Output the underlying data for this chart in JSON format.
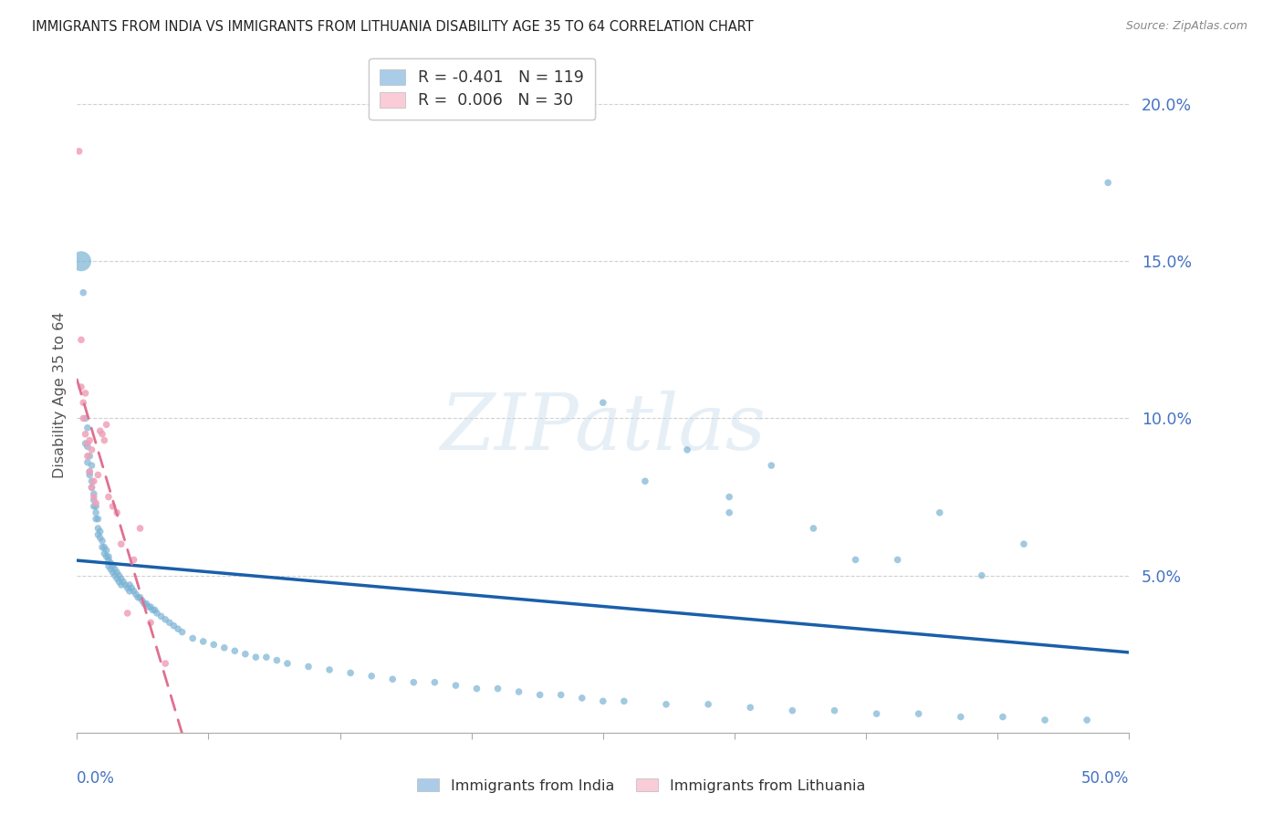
{
  "title": "IMMIGRANTS FROM INDIA VS IMMIGRANTS FROM LITHUANIA DISABILITY AGE 35 TO 64 CORRELATION CHART",
  "source": "Source: ZipAtlas.com",
  "ylabel": "Disability Age 35 to 64",
  "india_color": "#7ab3d4",
  "lithuania_color": "#f0a0b8",
  "india_R": -0.401,
  "india_N": 119,
  "lithuania_R": 0.006,
  "lithuania_N": 30,
  "legend_india_label": "R = -0.401   N = 119",
  "legend_lithuania_label": "R =  0.006   N = 30",
  "watermark": "ZIPatlas",
  "xlim": [
    0.0,
    0.5
  ],
  "ylim": [
    0.0,
    0.215
  ],
  "bg_color": "#ffffff",
  "grid_color": "#cccccc",
  "right_tick_color": "#4472c4",
  "bottom_tick_color": "#4472c4",
  "title_color": "#222222",
  "india_line_color": "#1a5faa",
  "lithuania_line_color": "#e07090",
  "india_legend_color": "#aacce8",
  "lithuania_legend_color": "#f9ccd8",
  "india_scatter_x": [
    0.002,
    0.003,
    0.004,
    0.004,
    0.005,
    0.005,
    0.005,
    0.006,
    0.006,
    0.006,
    0.007,
    0.007,
    0.007,
    0.008,
    0.008,
    0.008,
    0.009,
    0.009,
    0.009,
    0.01,
    0.01,
    0.01,
    0.011,
    0.011,
    0.012,
    0.012,
    0.013,
    0.013,
    0.014,
    0.014,
    0.015,
    0.015,
    0.015,
    0.016,
    0.016,
    0.017,
    0.017,
    0.018,
    0.018,
    0.019,
    0.019,
    0.02,
    0.02,
    0.021,
    0.021,
    0.022,
    0.023,
    0.024,
    0.025,
    0.025,
    0.026,
    0.027,
    0.028,
    0.029,
    0.03,
    0.031,
    0.032,
    0.033,
    0.034,
    0.035,
    0.036,
    0.037,
    0.038,
    0.04,
    0.042,
    0.044,
    0.046,
    0.048,
    0.05,
    0.055,
    0.06,
    0.065,
    0.07,
    0.075,
    0.08,
    0.085,
    0.09,
    0.095,
    0.1,
    0.11,
    0.12,
    0.13,
    0.14,
    0.15,
    0.16,
    0.17,
    0.18,
    0.19,
    0.2,
    0.21,
    0.22,
    0.23,
    0.24,
    0.25,
    0.26,
    0.28,
    0.3,
    0.32,
    0.34,
    0.36,
    0.38,
    0.4,
    0.42,
    0.44,
    0.46,
    0.48,
    0.49,
    0.35,
    0.27,
    0.31,
    0.41,
    0.45,
    0.33,
    0.29,
    0.37,
    0.43,
    0.31,
    0.39,
    0.25
  ],
  "india_scatter_y": [
    0.15,
    0.14,
    0.1,
    0.092,
    0.097,
    0.091,
    0.086,
    0.088,
    0.083,
    0.082,
    0.085,
    0.08,
    0.078,
    0.076,
    0.074,
    0.072,
    0.072,
    0.07,
    0.068,
    0.068,
    0.065,
    0.063,
    0.064,
    0.062,
    0.061,
    0.059,
    0.059,
    0.057,
    0.058,
    0.056,
    0.056,
    0.055,
    0.053,
    0.054,
    0.052,
    0.053,
    0.051,
    0.052,
    0.05,
    0.051,
    0.049,
    0.05,
    0.048,
    0.049,
    0.047,
    0.048,
    0.047,
    0.046,
    0.047,
    0.045,
    0.046,
    0.045,
    0.044,
    0.043,
    0.043,
    0.042,
    0.041,
    0.041,
    0.04,
    0.04,
    0.039,
    0.039,
    0.038,
    0.037,
    0.036,
    0.035,
    0.034,
    0.033,
    0.032,
    0.03,
    0.029,
    0.028,
    0.027,
    0.026,
    0.025,
    0.024,
    0.024,
    0.023,
    0.022,
    0.021,
    0.02,
    0.019,
    0.018,
    0.017,
    0.016,
    0.016,
    0.015,
    0.014,
    0.014,
    0.013,
    0.012,
    0.012,
    0.011,
    0.01,
    0.01,
    0.009,
    0.009,
    0.008,
    0.007,
    0.007,
    0.006,
    0.006,
    0.005,
    0.005,
    0.004,
    0.004,
    0.175,
    0.065,
    0.08,
    0.075,
    0.07,
    0.06,
    0.085,
    0.09,
    0.055,
    0.05,
    0.07,
    0.055,
    0.105
  ],
  "india_scatter_size": [
    250,
    30,
    30,
    30,
    30,
    30,
    30,
    30,
    30,
    30,
    30,
    30,
    30,
    30,
    30,
    30,
    30,
    30,
    30,
    30,
    30,
    30,
    30,
    30,
    30,
    30,
    30,
    30,
    30,
    30,
    30,
    30,
    30,
    30,
    30,
    30,
    30,
    30,
    30,
    30,
    30,
    30,
    30,
    30,
    30,
    30,
    30,
    30,
    30,
    30,
    30,
    30,
    30,
    30,
    30,
    30,
    30,
    30,
    30,
    30,
    30,
    30,
    30,
    30,
    30,
    30,
    30,
    30,
    30,
    30,
    30,
    30,
    30,
    30,
    30,
    30,
    30,
    30,
    30,
    30,
    30,
    30,
    30,
    30,
    30,
    30,
    30,
    30,
    30,
    30,
    30,
    30,
    30,
    30,
    30,
    30,
    30,
    30,
    30,
    30,
    30,
    30,
    30,
    30,
    30,
    30,
    30,
    30,
    30,
    30,
    30,
    30,
    30,
    30,
    30,
    30,
    30,
    30,
    30
  ],
  "lithuania_scatter_x": [
    0.001,
    0.002,
    0.002,
    0.003,
    0.003,
    0.004,
    0.004,
    0.005,
    0.005,
    0.006,
    0.006,
    0.007,
    0.007,
    0.008,
    0.008,
    0.009,
    0.01,
    0.011,
    0.012,
    0.013,
    0.014,
    0.015,
    0.017,
    0.019,
    0.021,
    0.024,
    0.027,
    0.03,
    0.035,
    0.042
  ],
  "lithuania_scatter_y": [
    0.185,
    0.125,
    0.11,
    0.105,
    0.1,
    0.108,
    0.095,
    0.092,
    0.088,
    0.093,
    0.083,
    0.09,
    0.078,
    0.08,
    0.075,
    0.073,
    0.082,
    0.096,
    0.095,
    0.093,
    0.098,
    0.075,
    0.072,
    0.07,
    0.06,
    0.038,
    0.055,
    0.065,
    0.035,
    0.022
  ],
  "lithuania_scatter_size": [
    30,
    30,
    30,
    30,
    30,
    30,
    30,
    30,
    30,
    30,
    30,
    30,
    30,
    30,
    30,
    30,
    30,
    30,
    30,
    30,
    30,
    30,
    30,
    30,
    30,
    30,
    30,
    30,
    30,
    30
  ]
}
